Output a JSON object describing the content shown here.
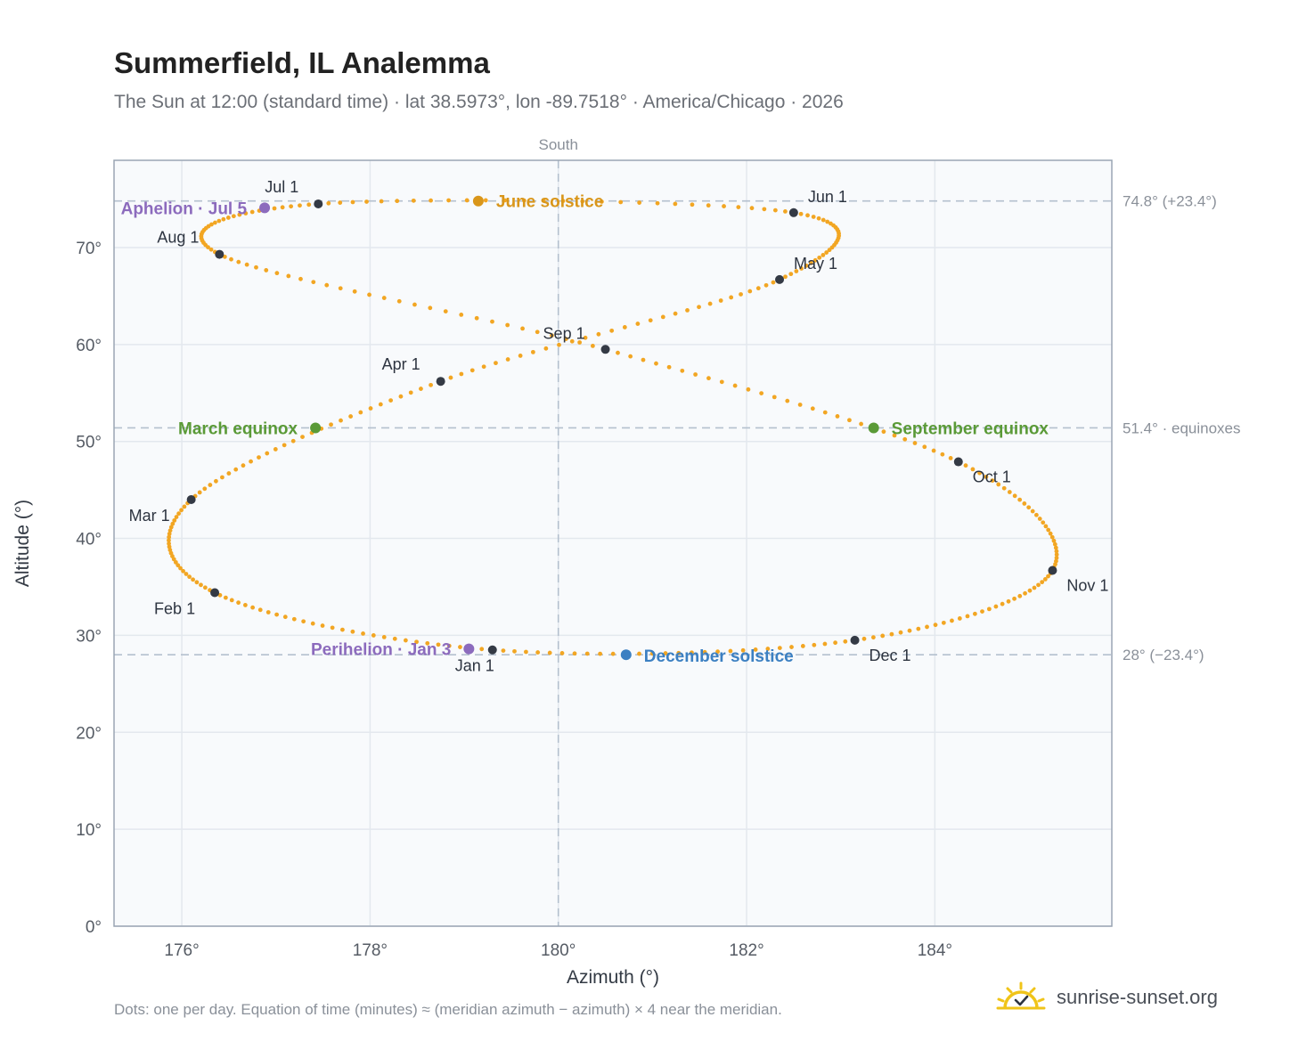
{
  "title": "Summerfield, IL Analemma",
  "subtitle": "The Sun at 12:00 (standard time) · lat 38.5973°, lon -89.7518° · America/Chicago · 2026",
  "footer_note": "Dots: one per day. Equation of time (minutes) ≈ (meridian azimuth − azimuth) × 4 near the meridian.",
  "brand": {
    "text": "sunrise-sunset.org",
    "icon": "sun-logo-icon",
    "color": "#f0c419"
  },
  "chart_data": {
    "type": "scatter",
    "title": "Summerfield, IL Analemma",
    "xlabel": "Azimuth (°)",
    "ylabel": "Altitude (°)",
    "xlim": [
      175.28,
      185.88
    ],
    "ylim": [
      0,
      79
    ],
    "xticks": [
      176,
      178,
      180,
      182,
      184
    ],
    "yticks": [
      0,
      10,
      20,
      30,
      40,
      50,
      60,
      70
    ],
    "grid": true,
    "colors": {
      "path": "#f2a623",
      "month": "#343a45",
      "equinox": "#5a9a37",
      "june": "#d9961a",
      "december": "#3c80c2",
      "aphelion": "#8c6bbd",
      "refline": "#b4c0ce"
    },
    "meridian": {
      "x": 180,
      "label": "South"
    },
    "reference_lines": [
      {
        "y": 74.8,
        "label": "74.8° (+23.4°)"
      },
      {
        "y": 51.4,
        "label": "51.4° · equinoxes"
      },
      {
        "y": 28,
        "label": "28° (−23.4°)"
      }
    ],
    "months": [
      {
        "label": "Jan 1",
        "az": 179.3,
        "alt": 28.5
      },
      {
        "label": "Feb 1",
        "az": 176.35,
        "alt": 34.4
      },
      {
        "label": "Mar 1",
        "az": 176.1,
        "alt": 44.0
      },
      {
        "label": "Apr 1",
        "az": 178.75,
        "alt": 56.2
      },
      {
        "label": "May 1",
        "az": 182.35,
        "alt": 66.7
      },
      {
        "label": "Jun 1",
        "az": 182.5,
        "alt": 73.6
      },
      {
        "label": "Jul 1",
        "az": 177.45,
        "alt": 74.5
      },
      {
        "label": "Aug 1",
        "az": 176.4,
        "alt": 69.3
      },
      {
        "label": "Sep 1",
        "az": 180.5,
        "alt": 59.5
      },
      {
        "label": "Oct 1",
        "az": 184.25,
        "alt": 47.9
      },
      {
        "label": "Nov 1",
        "az": 185.25,
        "alt": 36.7
      },
      {
        "label": "Dec 1",
        "az": 183.15,
        "alt": 29.5
      }
    ],
    "events": [
      {
        "label": "March equinox",
        "az": 177.42,
        "alt": 51.4,
        "kind": "equinox"
      },
      {
        "label": "June solstice",
        "az": 179.15,
        "alt": 74.8,
        "kind": "june"
      },
      {
        "label": "September equinox",
        "az": 183.35,
        "alt": 51.4,
        "kind": "equinox"
      },
      {
        "label": "December solstice",
        "az": 180.72,
        "alt": 28.0,
        "kind": "december"
      },
      {
        "label": "Perihelion · Jan 3",
        "az": 179.05,
        "alt": 28.6,
        "kind": "aphelion"
      },
      {
        "label": "Aphelion · Jul 5",
        "az": 176.88,
        "alt": 74.1,
        "kind": "aphelion"
      }
    ]
  }
}
